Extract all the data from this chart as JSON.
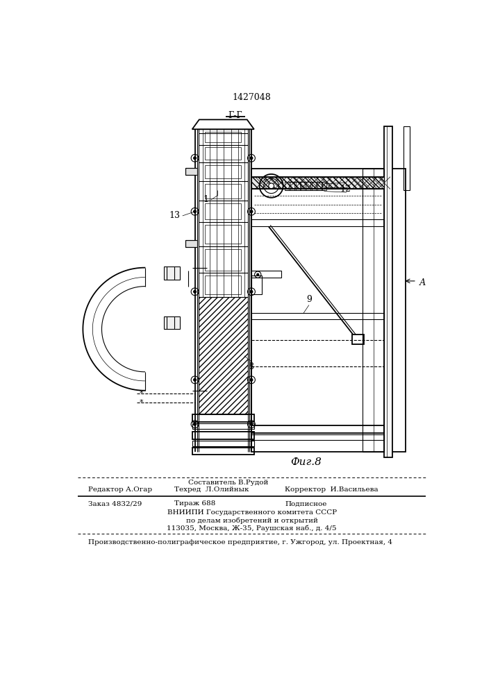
{
  "patent_number": "1427048",
  "section_label": "Г-Г",
  "fig_label": "Фиг.8",
  "arrow_label": "А",
  "footer": {
    "line1_center": "Составитель В.Рудой",
    "line2_left": "Редактор А.Огар",
    "line2_center": "Техред  Л.Олийнык",
    "line2_right": "Корректор  И.Васильева",
    "line3_left": "Заказ 4832/29",
    "line3_center": "Тираж 688",
    "line3_right": "Подписное",
    "line4": "ВНИИПИ Государственного комитета СССР",
    "line5": "по делам изобретений и открытий",
    "line6": "113035, Москва, Ж-35, Раушская наб., д. 4/5",
    "line7": "Производственно-полиграфическое предприятие, г. Ужгород, ул. Проектная, 4"
  },
  "bg_color": "#ffffff",
  "line_color": "#000000"
}
